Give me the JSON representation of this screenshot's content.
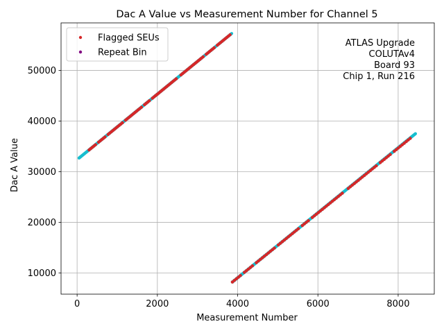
{
  "chart_data": {
    "type": "scatter",
    "title": "Dac A Value vs Measurement Number for Channel 5",
    "xlabel": "Measurement Number",
    "ylabel": "Dac A Value",
    "xlim": [
      -400,
      8900
    ],
    "ylim": [
      5800,
      59400
    ],
    "x_ticks": [
      0,
      2000,
      4000,
      6000,
      8000
    ],
    "y_ticks": [
      10000,
      20000,
      30000,
      40000,
      50000
    ],
    "x_tick_labels": [
      "0",
      "2000",
      "4000",
      "6000",
      "8000"
    ],
    "y_tick_labels": [
      "10000",
      "20000",
      "30000",
      "40000",
      "50000"
    ],
    "grid": true,
    "legend_position": "upper-left",
    "annotation_lines": [
      "ATLAS Upgrade",
      "COLUTAv4",
      "Board 93",
      "Chip 1, Run 216"
    ],
    "data_line_color": "#17becf",
    "series": [
      {
        "name": "Flagged SEUs",
        "color": "#d62728",
        "segments": [
          {
            "x": [
              300,
              3850
            ],
            "y": [
              34300,
              57300
            ]
          },
          {
            "x": [
              3870,
              8350
            ],
            "y": [
              8200,
              36900
            ]
          }
        ]
      },
      {
        "name": "Repeat Bin",
        "color": "#800080",
        "segments": []
      }
    ],
    "data_line_segments": [
      {
        "x": [
          50,
          3850
        ],
        "y": [
          32700,
          57300
        ]
      },
      {
        "x": [
          3870,
          8430
        ],
        "y": [
          8200,
          37500
        ]
      }
    ]
  }
}
